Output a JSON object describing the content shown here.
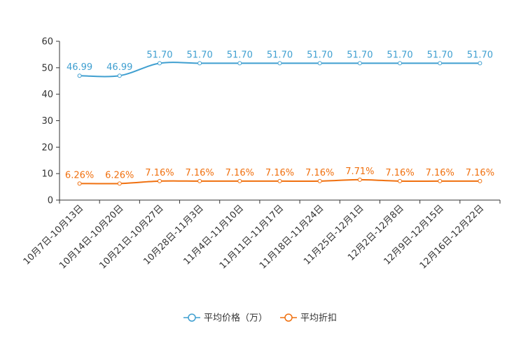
{
  "chart_data": {
    "type": "line",
    "title": "",
    "xlabel": "",
    "ylabel": "",
    "ylim": [
      0,
      60
    ],
    "yticks": [
      0,
      10,
      20,
      30,
      40,
      50,
      60
    ],
    "grid": false,
    "legend_position": "bottom",
    "categories": [
      "10月7日-10月13日",
      "10月14日-10月20日",
      "10月21日-10月27日",
      "10月28日-11月3日",
      "11月4日-11月10日",
      "11月11日-11月17日",
      "11月18日-11月24日",
      "11月25日-12月1日",
      "12月2日-12月8日",
      "12月9日-12月15日",
      "12月16日-12月22日"
    ],
    "series": [
      {
        "name": "平均价格（万）",
        "color": "#3f9fd0",
        "values": [
          46.99,
          46.99,
          51.7,
          51.7,
          51.7,
          51.7,
          51.7,
          51.7,
          51.7,
          51.7,
          51.7
        ],
        "labels": [
          "46.99",
          "46.99",
          "51.70",
          "51.70",
          "51.70",
          "51.70",
          "51.70",
          "51.70",
          "51.70",
          "51.70",
          "51.70"
        ]
      },
      {
        "name": "平均折扣",
        "color": "#f0700f",
        "values": [
          6.26,
          6.26,
          7.16,
          7.16,
          7.16,
          7.16,
          7.16,
          7.71,
          7.16,
          7.16,
          7.16
        ],
        "labels": [
          "6.26%",
          "6.26%",
          "7.16%",
          "7.16%",
          "7.16%",
          "7.16%",
          "7.16%",
          "7.71%",
          "7.16%",
          "7.16%",
          "7.16%"
        ]
      }
    ]
  }
}
